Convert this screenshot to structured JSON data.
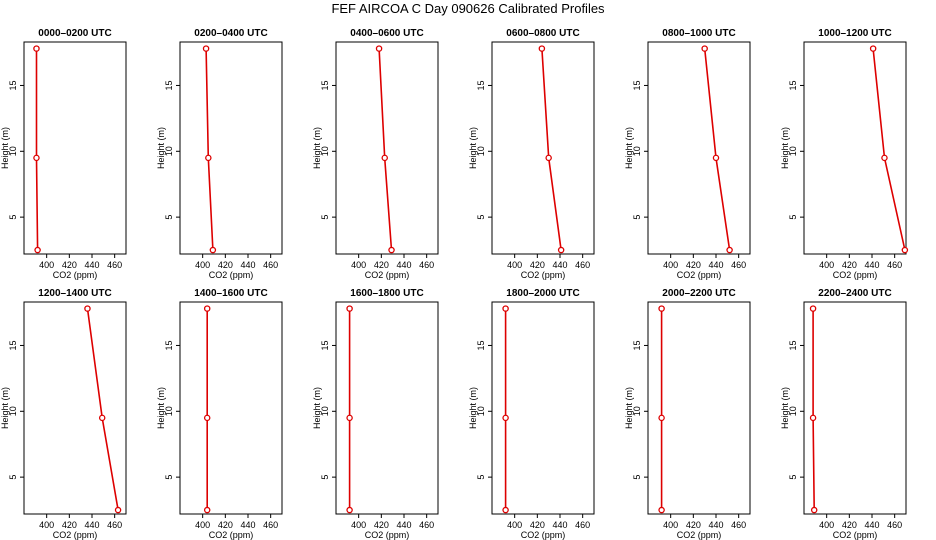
{
  "figure_title": "FEF AIRCOA C  Day 090626  Calibrated Profiles",
  "line_color": "#dd0000",
  "chart_data": [
    {
      "type": "line",
      "title": "0000–0200 UTC",
      "xlabel": "CO2 (ppm)",
      "ylabel": "Height (m)",
      "xlim": [
        380,
        470
      ],
      "ylim": [
        2.2,
        18.3
      ],
      "xticks": [
        400,
        420,
        440,
        460
      ],
      "yticks": [
        5,
        10,
        15
      ],
      "points": [
        {
          "x": 391,
          "y": 17.8
        },
        {
          "x": 391,
          "y": 9.5
        },
        {
          "x": 392,
          "y": 2.5
        }
      ]
    },
    {
      "type": "line",
      "title": "0200–0400 UTC",
      "xlabel": "CO2 (ppm)",
      "ylabel": "Height (m)",
      "xlim": [
        380,
        470
      ],
      "ylim": [
        2.2,
        18.3
      ],
      "xticks": [
        400,
        420,
        440,
        460
      ],
      "yticks": [
        5,
        10,
        15
      ],
      "points": [
        {
          "x": 403,
          "y": 17.8
        },
        {
          "x": 405,
          "y": 9.5
        },
        {
          "x": 409,
          "y": 2.5
        }
      ]
    },
    {
      "type": "line",
      "title": "0400–0600 UTC",
      "xlabel": "CO2 (ppm)",
      "ylabel": "Height (m)",
      "xlim": [
        380,
        470
      ],
      "ylim": [
        2.2,
        18.3
      ],
      "xticks": [
        400,
        420,
        440,
        460
      ],
      "yticks": [
        5,
        10,
        15
      ],
      "points": [
        {
          "x": 418,
          "y": 17.8
        },
        {
          "x": 423,
          "y": 9.5
        },
        {
          "x": 429,
          "y": 2.5
        }
      ]
    },
    {
      "type": "line",
      "title": "0600–0800 UTC",
      "xlabel": "CO2 (ppm)",
      "ylabel": "Height (m)",
      "xlim": [
        380,
        470
      ],
      "ylim": [
        2.2,
        18.3
      ],
      "xticks": [
        400,
        420,
        440,
        460
      ],
      "yticks": [
        5,
        10,
        15
      ],
      "points": [
        {
          "x": 424,
          "y": 17.8
        },
        {
          "x": 430,
          "y": 9.5
        },
        {
          "x": 441,
          "y": 2.5
        }
      ]
    },
    {
      "type": "line",
      "title": "0800–1000 UTC",
      "xlabel": "CO2 (ppm)",
      "ylabel": "Height (m)",
      "xlim": [
        380,
        470
      ],
      "ylim": [
        2.2,
        18.3
      ],
      "xticks": [
        400,
        420,
        440,
        460
      ],
      "yticks": [
        5,
        10,
        15
      ],
      "points": [
        {
          "x": 430,
          "y": 17.8
        },
        {
          "x": 440,
          "y": 9.5
        },
        {
          "x": 452,
          "y": 2.5
        }
      ]
    },
    {
      "type": "line",
      "title": "1000–1200 UTC",
      "xlabel": "CO2 (ppm)",
      "ylabel": "Height (m)",
      "xlim": [
        380,
        470
      ],
      "ylim": [
        2.2,
        18.3
      ],
      "xticks": [
        400,
        420,
        440,
        460
      ],
      "yticks": [
        5,
        10,
        15
      ],
      "points": [
        {
          "x": 441,
          "y": 17.8
        },
        {
          "x": 451,
          "y": 9.5
        },
        {
          "x": 469,
          "y": 2.5
        }
      ]
    },
    {
      "type": "line",
      "title": "1200–1400 UTC",
      "xlabel": "CO2 (ppm)",
      "ylabel": "Height (m)",
      "xlim": [
        380,
        470
      ],
      "ylim": [
        2.2,
        18.3
      ],
      "xticks": [
        400,
        420,
        440,
        460
      ],
      "yticks": [
        5,
        10,
        15
      ],
      "points": [
        {
          "x": 436,
          "y": 17.8
        },
        {
          "x": 449,
          "y": 9.5
        },
        {
          "x": 463,
          "y": 2.5
        }
      ]
    },
    {
      "type": "line",
      "title": "1400–1600 UTC",
      "xlabel": "CO2 (ppm)",
      "ylabel": "Height (m)",
      "xlim": [
        380,
        470
      ],
      "ylim": [
        2.2,
        18.3
      ],
      "xticks": [
        400,
        420,
        440,
        460
      ],
      "yticks": [
        5,
        10,
        15
      ],
      "points": [
        {
          "x": 404,
          "y": 17.8
        },
        {
          "x": 404,
          "y": 9.5
        },
        {
          "x": 404,
          "y": 2.5
        }
      ]
    },
    {
      "type": "line",
      "title": "1600–1800 UTC",
      "xlabel": "CO2 (ppm)",
      "ylabel": "Height (m)",
      "xlim": [
        380,
        470
      ],
      "ylim": [
        2.2,
        18.3
      ],
      "xticks": [
        400,
        420,
        440,
        460
      ],
      "yticks": [
        5,
        10,
        15
      ],
      "points": [
        {
          "x": 392,
          "y": 17.8
        },
        {
          "x": 392,
          "y": 9.5
        },
        {
          "x": 392,
          "y": 2.5
        }
      ]
    },
    {
      "type": "line",
      "title": "1800–2000 UTC",
      "xlabel": "CO2 (ppm)",
      "ylabel": "Height (m)",
      "xlim": [
        380,
        470
      ],
      "ylim": [
        2.2,
        18.3
      ],
      "xticks": [
        400,
        420,
        440,
        460
      ],
      "yticks": [
        5,
        10,
        15
      ],
      "points": [
        {
          "x": 392,
          "y": 17.8
        },
        {
          "x": 392,
          "y": 9.5
        },
        {
          "x": 392,
          "y": 2.5
        }
      ]
    },
    {
      "type": "line",
      "title": "2000–2200 UTC",
      "xlabel": "CO2 (ppm)",
      "ylabel": "Height (m)",
      "xlim": [
        380,
        470
      ],
      "ylim": [
        2.2,
        18.3
      ],
      "xticks": [
        400,
        420,
        440,
        460
      ],
      "yticks": [
        5,
        10,
        15
      ],
      "points": [
        {
          "x": 392,
          "y": 17.8
        },
        {
          "x": 392,
          "y": 9.5
        },
        {
          "x": 392,
          "y": 2.5
        }
      ]
    },
    {
      "type": "line",
      "title": "2200–2400 UTC",
      "xlabel": "CO2 (ppm)",
      "ylabel": "Height (m)",
      "xlim": [
        380,
        470
      ],
      "ylim": [
        2.2,
        18.3
      ],
      "xticks": [
        400,
        420,
        440,
        460
      ],
      "yticks": [
        5,
        10,
        15
      ],
      "points": [
        {
          "x": 388,
          "y": 17.8
        },
        {
          "x": 388,
          "y": 9.5
        },
        {
          "x": 389,
          "y": 2.5
        }
      ]
    }
  ]
}
